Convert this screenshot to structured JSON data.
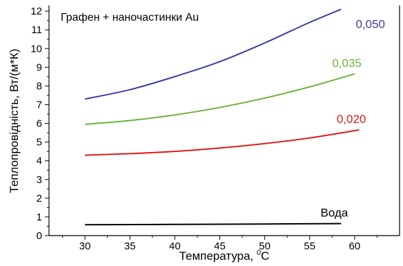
{
  "chart_data": {
    "type": "line",
    "annotation": "Графен + наночастинки Au",
    "xlabel": "Температура, ",
    "xlabel_sup": "0",
    "xlabel_unit": "C",
    "ylabel": "Теплопровідність, Вт/(м*К)",
    "xlim": [
      26,
      65
    ],
    "ylim": [
      0,
      12.3
    ],
    "x_ticks": [
      30,
      35,
      40,
      45,
      50,
      55,
      60
    ],
    "y_ticks": [
      0,
      1,
      2,
      3,
      4,
      5,
      6,
      7,
      8,
      9,
      10,
      11,
      12
    ],
    "series": [
      {
        "name": "0,050",
        "color": "#3b3fa0",
        "x": [
          30,
          35,
          40,
          45,
          50,
          55,
          58.5
        ],
        "y": [
          7.3,
          7.8,
          8.5,
          9.3,
          10.3,
          11.4,
          12.1
        ]
      },
      {
        "name": "0,035",
        "color": "#6bb33a",
        "x": [
          30,
          35,
          40,
          45,
          50,
          55,
          60
        ],
        "y": [
          5.95,
          6.15,
          6.45,
          6.85,
          7.35,
          7.95,
          8.65
        ]
      },
      {
        "name": "0,020",
        "color": "#dd1a1a",
        "x": [
          30,
          35,
          40,
          45,
          50,
          55,
          60.5
        ],
        "y": [
          4.3,
          4.38,
          4.5,
          4.68,
          4.92,
          5.22,
          5.65
        ]
      },
      {
        "name": "Вода",
        "color": "#000000",
        "x": [
          30,
          40,
          50,
          58.5
        ],
        "y": [
          0.58,
          0.6,
          0.62,
          0.64
        ]
      }
    ]
  }
}
